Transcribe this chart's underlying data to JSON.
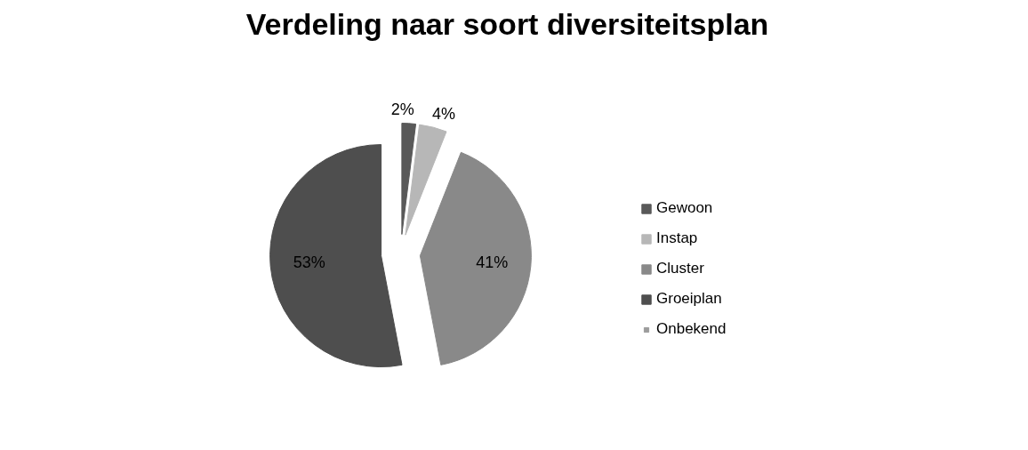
{
  "chart_data": {
    "type": "pie",
    "title": "Verdeling naar soort diversiteitsplan",
    "categories": [
      "Gewoon",
      "Instap",
      "Cluster",
      "Groeiplan",
      "Onbekend"
    ],
    "values": [
      2,
      4,
      41,
      53,
      0
    ],
    "colors": [
      "#595959",
      "#b7b7b7",
      "#898989",
      "#4e4e4e",
      "#9c9c9c"
    ],
    "value_labels": [
      "2%",
      "4%",
      "41%",
      "53%",
      null
    ],
    "legend": "right"
  }
}
